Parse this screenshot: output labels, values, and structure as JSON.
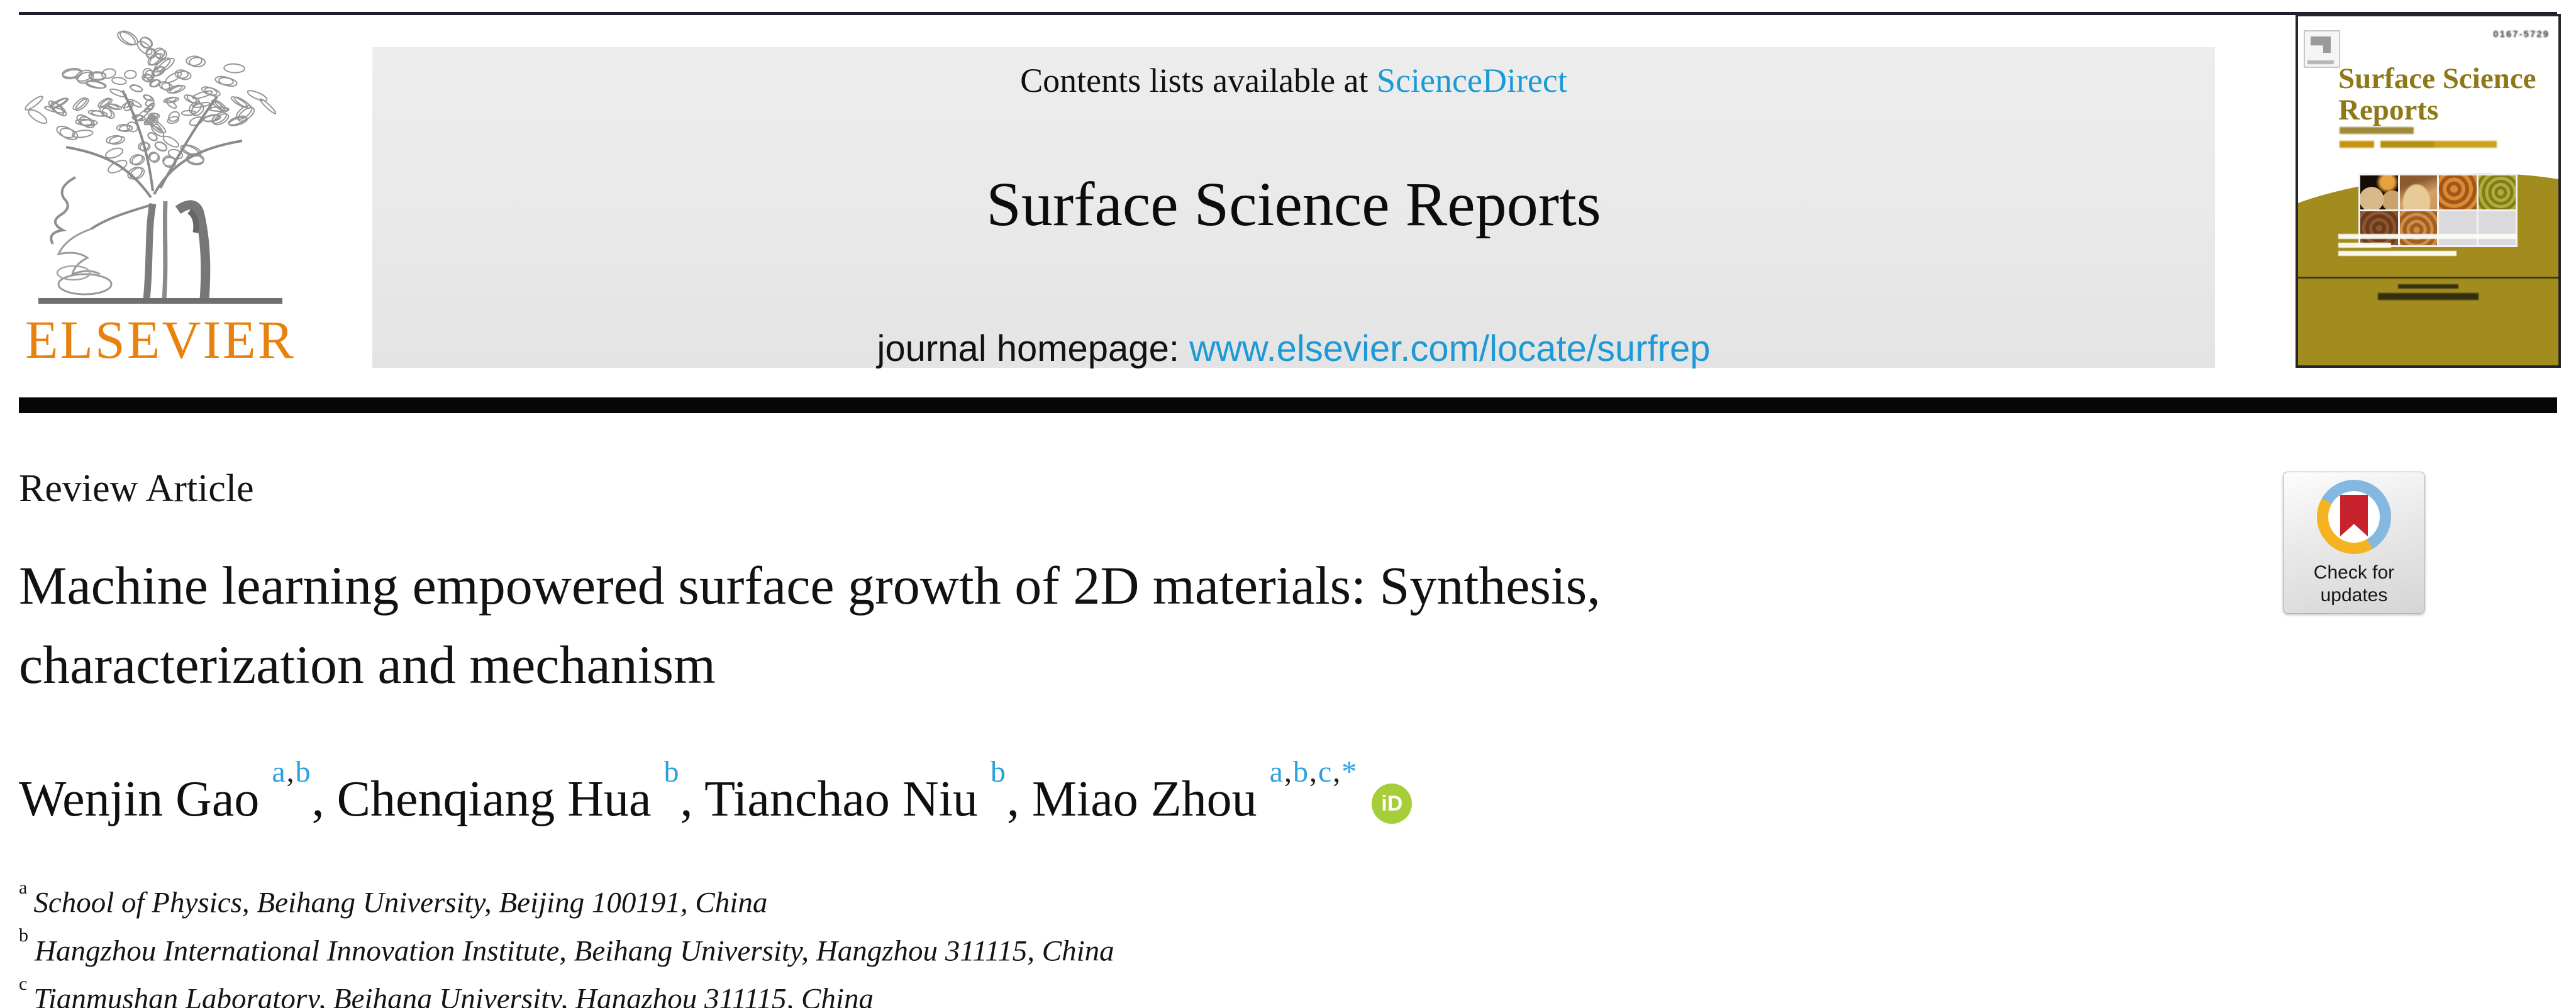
{
  "masthead": {
    "contents_prefix": "Contents lists available at ",
    "contents_link": "ScienceDirect",
    "journal_title": "Surface Science Reports",
    "homepage_prefix": "journal homepage: ",
    "homepage_link": "www.elsevier.com/locate/surfrep"
  },
  "publisher": {
    "wordmark": "ELSEVIER"
  },
  "cover": {
    "issn": "0167-5729",
    "title_line1": "Surface Science",
    "title_line2": "Reports"
  },
  "article": {
    "type_label": "Review Article",
    "title_lines": [
      "Machine learning empowered surface growth of 2D materials: Synthesis,",
      "characterization and mechanism"
    ],
    "authors": [
      {
        "name": "Wenjin Gao",
        "sup": "a,b"
      },
      {
        "name": "Chenqiang Hua",
        "sup": "b"
      },
      {
        "name": "Tianchao Niu",
        "sup": "b"
      },
      {
        "name": "Miao Zhou",
        "sup": "a,b,c,*"
      }
    ],
    "affiliations": [
      {
        "sup": "a",
        "text": "School of Physics, Beihang University, Beijing 100191, China"
      },
      {
        "sup": "b",
        "text": "Hangzhou International Innovation Institute, Beihang University, Hangzhou 311115, China"
      },
      {
        "sup": "c",
        "text": "Tianmushan Laboratory, Beihang University, Hangzhou 311115, China"
      }
    ]
  },
  "badges": {
    "check_line1": "Check for",
    "check_line2": "updates",
    "orcid": "iD"
  },
  "colors": {
    "link_blue": "#1d9ad6",
    "superscript_blue": "#2da0dc",
    "elsevier_orange": "#e8820e",
    "cover_gold": "#a28c1e",
    "cover_title_gold": "#8e7817",
    "orcid_green": "#a6ce39",
    "crossmark_red": "#c8232c",
    "crossmark_blue": "#85b8e0",
    "crossmark_yellow": "#f5b321"
  }
}
